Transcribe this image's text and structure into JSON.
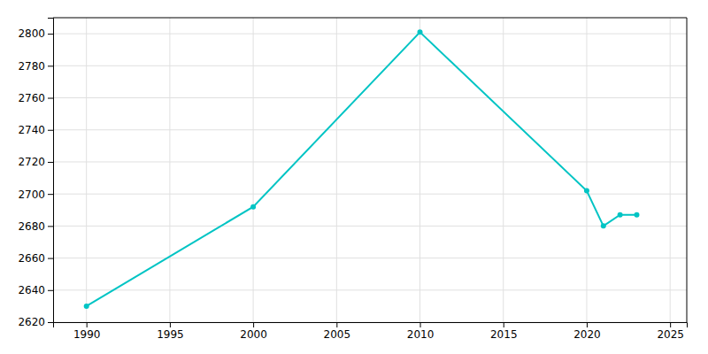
{
  "chart_data": {
    "type": "line",
    "x": [
      1990,
      2000,
      2010,
      2020,
      2021,
      2022,
      2023
    ],
    "values": [
      2630,
      2692,
      2801,
      2702,
      2680,
      2687,
      2687
    ],
    "color": "#00C4C4",
    "marker": "circle",
    "grid": true,
    "xlim": [
      1988,
      2026
    ],
    "ylim": [
      2620,
      2810
    ],
    "xticks": [
      1990,
      1995,
      2000,
      2005,
      2010,
      2015,
      2020,
      2025
    ],
    "yticks": [
      2620,
      2640,
      2660,
      2680,
      2700,
      2720,
      2740,
      2760,
      2780,
      2800
    ]
  }
}
